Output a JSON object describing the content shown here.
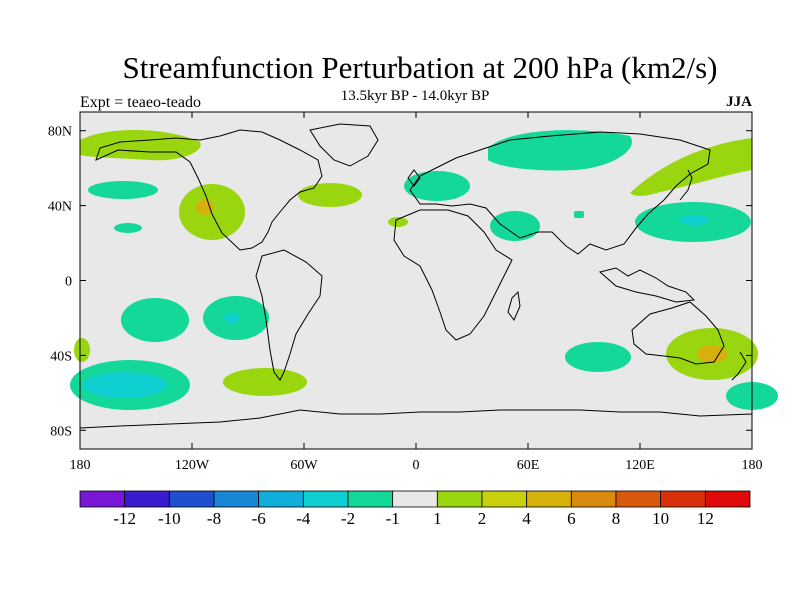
{
  "header": {
    "title": "Streamfunction Perturbation at 200 hPa (km2/s)",
    "subtitle": "13.5kyr BP - 14.0kyr BP",
    "left_label": "Expt = teaeo-teado",
    "right_label": "JJA"
  },
  "axes": {
    "x_ticks": [
      "180",
      "120W",
      "60W",
      "0",
      "60E",
      "120E",
      "180"
    ],
    "y_ticks": [
      "80N",
      "40N",
      "0",
      "40S",
      "80S"
    ],
    "lon_range": [
      -180,
      180
    ],
    "lat_range": [
      -90,
      90
    ]
  },
  "colorbar": {
    "labels": [
      "-12",
      "-10",
      "-8",
      "-6",
      "-4",
      "-2",
      "-1",
      "1",
      "2",
      "4",
      "6",
      "8",
      "10",
      "12"
    ],
    "colors": [
      "#7a17d6",
      "#3a1ccf",
      "#1d4fcf",
      "#1a86d6",
      "#12aedb",
      "#10cfd0",
      "#14d89a",
      "#e8e8e8",
      "#9ad60f",
      "#c8cf0c",
      "#d6b10c",
      "#d98a0c",
      "#d9590c",
      "#d9300c",
      "#e00a0a"
    ]
  },
  "colors": {
    "background": "#e8e8e8",
    "positive_1_2": "#9ad60f",
    "positive_4_6": "#d6b10c",
    "negative_1_2": "#14d89a",
    "negative_2_4": "#10cfd0"
  }
}
